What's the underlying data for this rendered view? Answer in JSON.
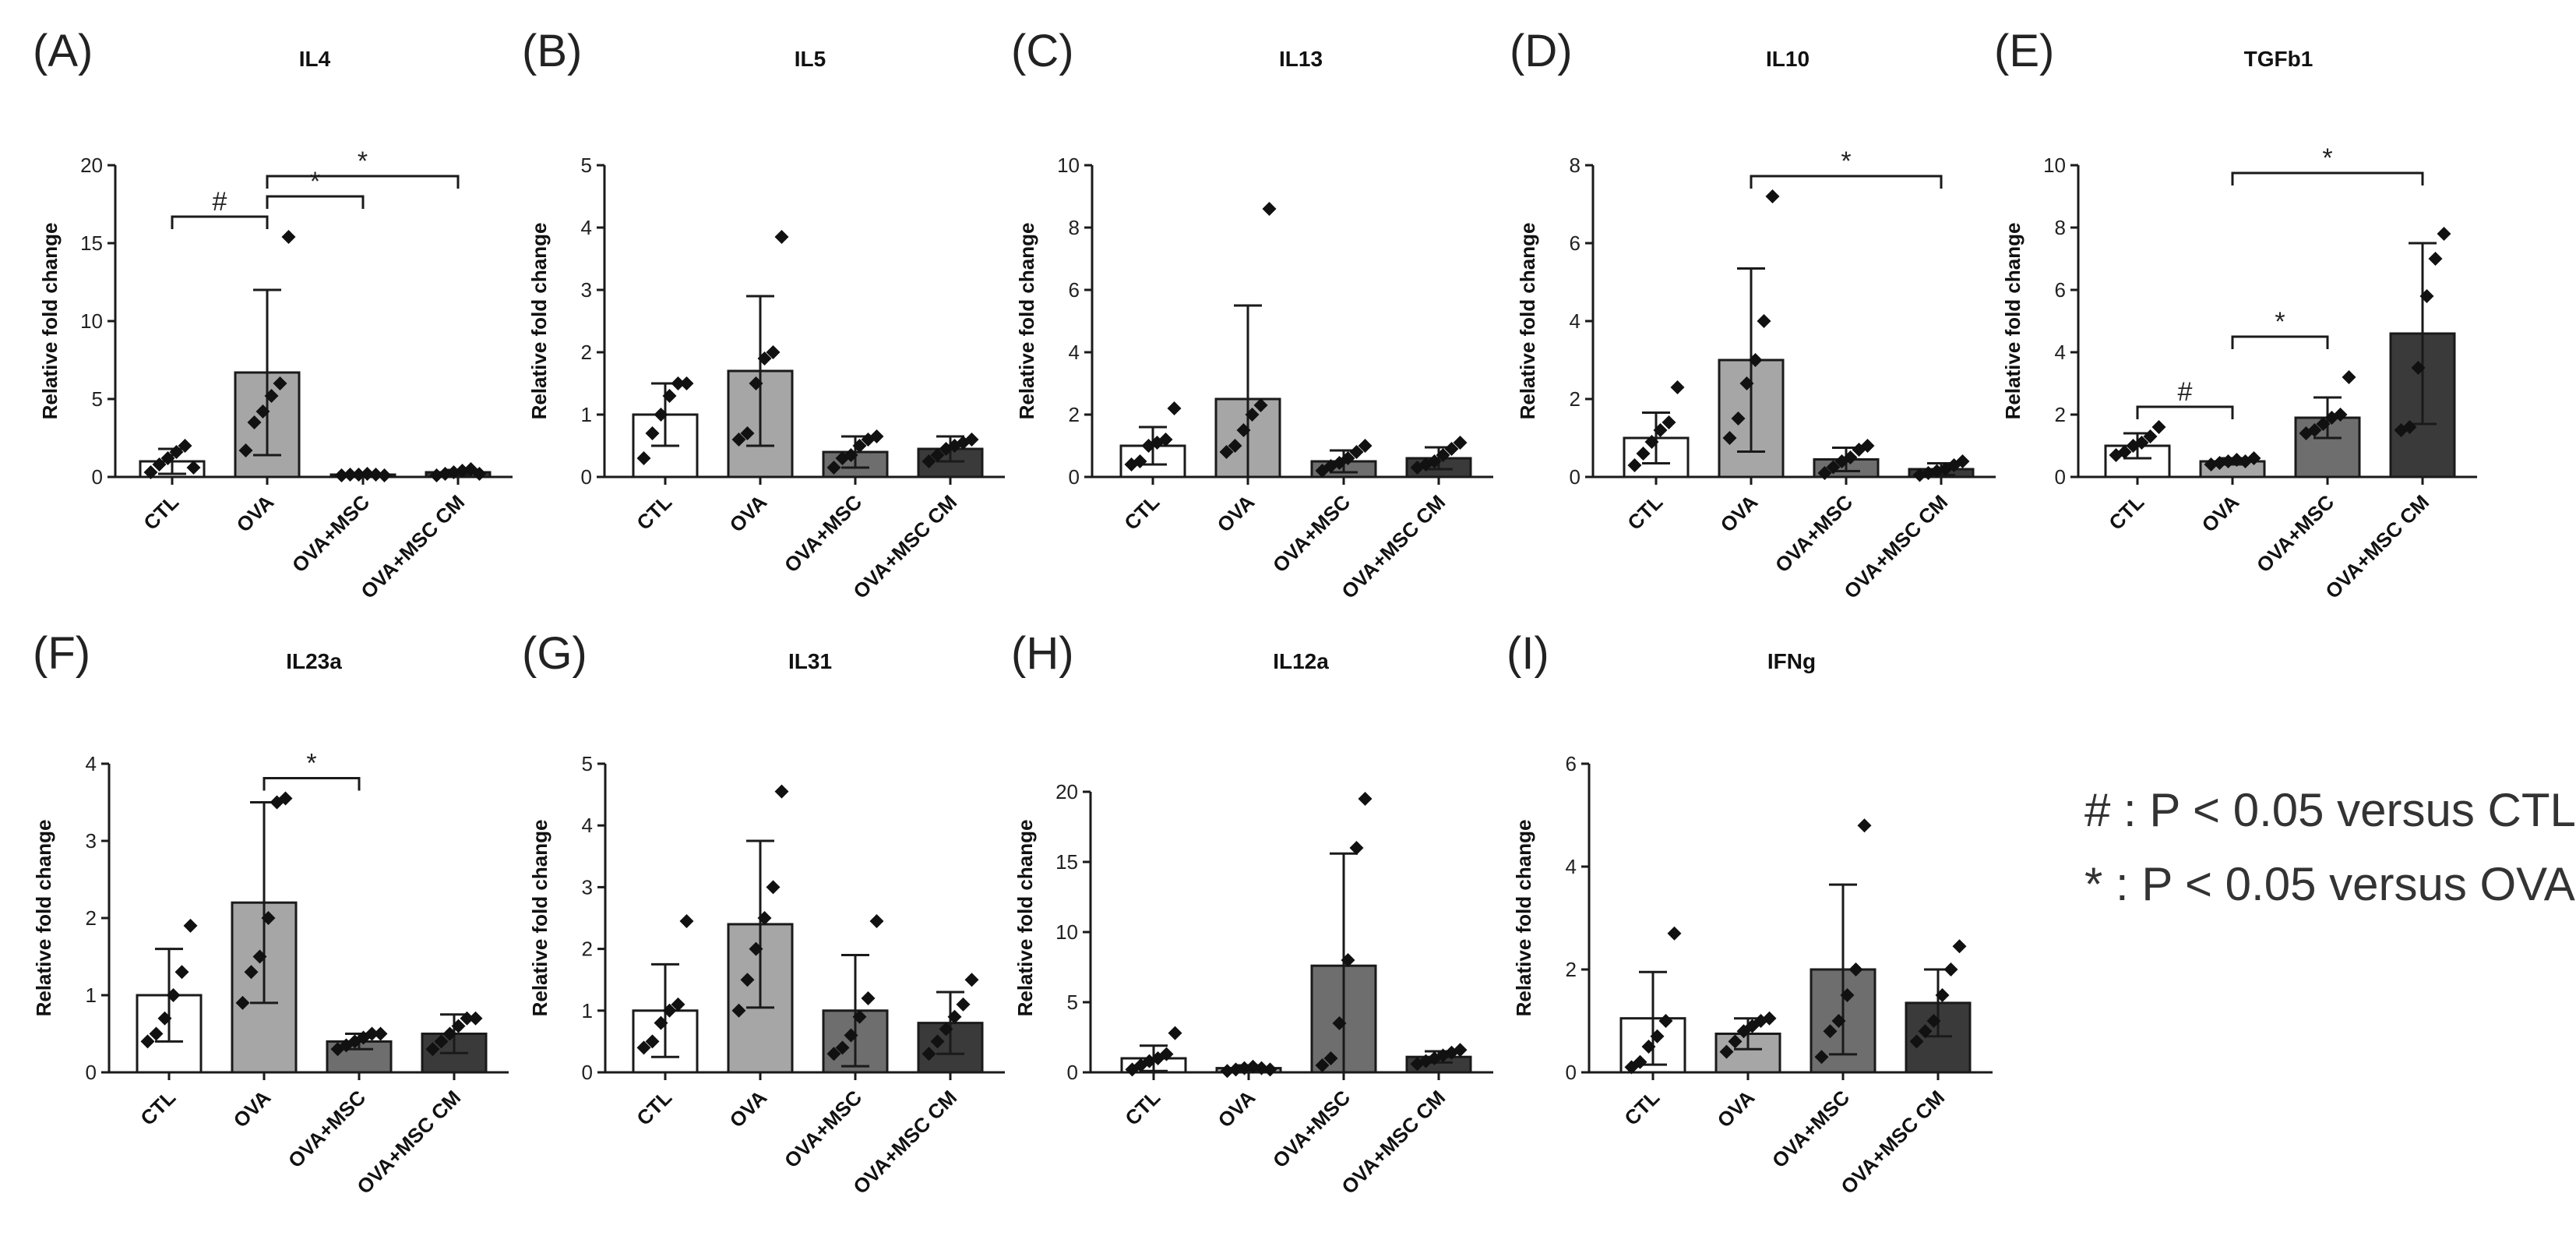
{
  "legend": {
    "hash_note": "# : P < 0.05 versus CTL",
    "star_note": "* : P < 0.05 versus OVA"
  },
  "colors": {
    "CTL": "#ffffff",
    "OVA": "#a6a6a6",
    "OVA+MSC": "#6e6e6e",
    "OVA+MSC CM": "#3a3a3a",
    "stroke": "#1a1a1a"
  },
  "chart_data": [
    {
      "type": "bar",
      "panel": "(A)",
      "title": "IL4",
      "ylabel": "Relative fold change",
      "categories": [
        "CTL",
        "OVA",
        "OVA+MSC",
        "OVA+MSC CM"
      ],
      "yticks": [
        "0",
        "5",
        "10",
        "15",
        "20"
      ],
      "ylim": [
        0,
        20
      ],
      "values": [
        1.0,
        6.7,
        0.15,
        0.3
      ],
      "err": [
        0.8,
        5.3,
        0.05,
        0.15
      ],
      "points": [
        [
          0.3,
          0.8,
          1.2,
          1.6,
          2.0,
          0.6
        ],
        [
          1.7,
          3.5,
          4.2,
          5.2,
          6.0,
          15.4
        ],
        [
          0.1,
          0.15,
          0.15,
          0.2,
          0.15,
          0.1
        ],
        [
          0.1,
          0.2,
          0.3,
          0.4,
          0.5,
          0.2
        ]
      ],
      "sig": [
        {
          "from": 0,
          "to": 1,
          "label": "#"
        },
        {
          "from": 1,
          "to": 2,
          "label": "*"
        },
        {
          "from": 1,
          "to": 3,
          "label": "*"
        }
      ]
    },
    {
      "type": "bar",
      "panel": "(B)",
      "title": "IL5",
      "ylabel": "Relative fold change",
      "categories": [
        "CTL",
        "OVA",
        "OVA+MSC",
        "OVA+MSC CM"
      ],
      "yticks": [
        "0",
        "1",
        "2",
        "3",
        "4",
        "5"
      ],
      "ylim": [
        0,
        5
      ],
      "values": [
        1.0,
        1.7,
        0.4,
        0.45
      ],
      "err": [
        0.5,
        1.2,
        0.25,
        0.2
      ],
      "points": [
        [
          0.3,
          0.7,
          1.0,
          1.3,
          1.5,
          1.5
        ],
        [
          0.6,
          0.7,
          1.5,
          1.9,
          2.0,
          3.85
        ],
        [
          0.15,
          0.3,
          0.35,
          0.5,
          0.6,
          0.65
        ],
        [
          0.25,
          0.35,
          0.45,
          0.5,
          0.55,
          0.6
        ]
      ],
      "sig": []
    },
    {
      "type": "bar",
      "panel": "(C)",
      "title": "IL13",
      "ylabel": "Relative fold change",
      "categories": [
        "CTL",
        "OVA",
        "OVA+MSC",
        "OVA+MSC CM"
      ],
      "yticks": [
        "0",
        "2",
        "4",
        "6",
        "8",
        "10"
      ],
      "ylim": [
        0,
        10
      ],
      "values": [
        1.0,
        2.5,
        0.5,
        0.6
      ],
      "err": [
        0.6,
        3.0,
        0.35,
        0.35
      ],
      "points": [
        [
          0.4,
          0.5,
          1.0,
          1.1,
          1.2,
          2.2
        ],
        [
          0.8,
          1.0,
          1.5,
          2.0,
          2.3,
          8.6
        ],
        [
          0.2,
          0.35,
          0.45,
          0.6,
          0.8,
          1.0
        ],
        [
          0.3,
          0.4,
          0.5,
          0.7,
          0.9,
          1.1
        ]
      ],
      "sig": []
    },
    {
      "type": "bar",
      "panel": "(D)",
      "title": "IL10",
      "ylabel": "Relative fold change",
      "categories": [
        "CTL",
        "OVA",
        "OVA+MSC",
        "OVA+MSC CM"
      ],
      "yticks": [
        "0",
        "2",
        "4",
        "6",
        "8"
      ],
      "ylim": [
        0,
        8
      ],
      "values": [
        1.0,
        3.0,
        0.45,
        0.2
      ],
      "err": [
        0.65,
        2.35,
        0.3,
        0.15
      ],
      "points": [
        [
          0.3,
          0.6,
          0.9,
          1.2,
          1.4,
          2.3
        ],
        [
          1.0,
          1.5,
          2.4,
          3.0,
          4.0,
          7.2
        ],
        [
          0.1,
          0.25,
          0.4,
          0.5,
          0.7,
          0.8
        ],
        [
          0.05,
          0.1,
          0.15,
          0.2,
          0.3,
          0.4
        ]
      ],
      "sig": [
        {
          "from": 1,
          "to": 3,
          "label": "*"
        }
      ]
    },
    {
      "type": "bar",
      "panel": "(E)",
      "title": "TGFb1",
      "ylabel": "Relative fold change",
      "categories": [
        "CTL",
        "OVA",
        "OVA+MSC",
        "OVA+MSC CM"
      ],
      "yticks": [
        "0",
        "2",
        "4",
        "6",
        "8",
        "10"
      ],
      "ylim": [
        0,
        10
      ],
      "values": [
        1.0,
        0.5,
        1.9,
        4.6
      ],
      "err": [
        0.4,
        0.1,
        0.65,
        2.9
      ],
      "points": [
        [
          0.7,
          0.8,
          1.0,
          1.1,
          1.3,
          1.6
        ],
        [
          0.4,
          0.45,
          0.5,
          0.55,
          0.5,
          0.6
        ],
        [
          1.4,
          1.5,
          1.7,
          1.9,
          2.0,
          3.2
        ],
        [
          1.5,
          1.6,
          3.5,
          5.8,
          7.0,
          7.8
        ]
      ],
      "sig": [
        {
          "from": 0,
          "to": 1,
          "label": "#"
        },
        {
          "from": 1,
          "to": 2,
          "label": "*"
        },
        {
          "from": 1,
          "to": 3,
          "label": "*"
        }
      ]
    },
    {
      "type": "bar",
      "panel": "(F)",
      "title": "IL23a",
      "ylabel": "Relative fold change",
      "categories": [
        "CTL",
        "OVA",
        "OVA+MSC",
        "OVA+MSC CM"
      ],
      "yticks": [
        "0",
        "1",
        "2",
        "3",
        "4"
      ],
      "ylim": [
        0,
        4
      ],
      "values": [
        1.0,
        2.2,
        0.4,
        0.5
      ],
      "err": [
        0.6,
        1.3,
        0.1,
        0.25
      ],
      "points": [
        [
          0.4,
          0.5,
          0.7,
          1.0,
          1.3,
          1.9
        ],
        [
          0.9,
          1.3,
          1.5,
          2.0,
          3.5,
          3.55
        ],
        [
          0.3,
          0.35,
          0.4,
          0.45,
          0.5,
          0.5
        ],
        [
          0.3,
          0.4,
          0.5,
          0.6,
          0.7,
          0.7
        ]
      ],
      "sig": [
        {
          "from": 1,
          "to": 2,
          "label": "*"
        }
      ]
    },
    {
      "type": "bar",
      "panel": "(G)",
      "title": "IL31",
      "ylabel": "Relative fold change",
      "categories": [
        "CTL",
        "OVA",
        "OVA+MSC",
        "OVA+MSC CM"
      ],
      "yticks": [
        "0",
        "1",
        "2",
        "3",
        "4",
        "5"
      ],
      "ylim": [
        0,
        5
      ],
      "values": [
        1.0,
        2.4,
        1.0,
        0.8
      ],
      "err": [
        0.75,
        1.35,
        0.9,
        0.5
      ],
      "points": [
        [
          0.4,
          0.5,
          0.8,
          1.0,
          1.1,
          2.45
        ],
        [
          1.0,
          1.5,
          2.0,
          2.5,
          3.0,
          4.55
        ],
        [
          0.3,
          0.4,
          0.6,
          0.9,
          1.2,
          2.45
        ],
        [
          0.3,
          0.5,
          0.7,
          0.9,
          1.1,
          1.5
        ]
      ],
      "sig": []
    },
    {
      "type": "bar",
      "panel": "(H)",
      "title": "IL12a",
      "ylabel": "Relative fold change",
      "categories": [
        "CTL",
        "OVA",
        "OVA+MSC",
        "OVA+MSC CM"
      ],
      "yticks": [
        "0",
        "5",
        "10",
        "15",
        "20"
      ],
      "ylim": [
        0,
        22
      ],
      "values": [
        1.0,
        0.3,
        7.6,
        1.1
      ],
      "err": [
        0.9,
        0.2,
        8.0,
        0.4
      ],
      "points": [
        [
          0.2,
          0.5,
          0.8,
          1.0,
          1.3,
          2.8
        ],
        [
          0.1,
          0.2,
          0.3,
          0.4,
          0.3,
          0.2
        ],
        [
          0.5,
          1.0,
          3.5,
          8.0,
          16.0,
          19.5
        ],
        [
          0.6,
          0.8,
          1.0,
          1.2,
          1.4,
          1.6
        ]
      ],
      "sig": []
    },
    {
      "type": "bar",
      "panel": "(I)",
      "title": "IFNg",
      "ylabel": "Relative fold change",
      "categories": [
        "CTL",
        "OVA",
        "OVA+MSC",
        "OVA+MSC CM"
      ],
      "yticks": [
        "0",
        "2",
        "4",
        "6"
      ],
      "ylim": [
        0,
        6
      ],
      "values": [
        1.05,
        0.75,
        2.0,
        1.35
      ],
      "err": [
        0.9,
        0.3,
        1.65,
        0.65
      ],
      "points": [
        [
          0.1,
          0.2,
          0.5,
          0.7,
          1.0,
          2.7
        ],
        [
          0.4,
          0.6,
          0.8,
          0.9,
          1.0,
          1.05
        ],
        [
          0.3,
          0.8,
          1.0,
          1.5,
          2.0,
          4.8
        ],
        [
          0.6,
          0.8,
          1.0,
          1.5,
          2.0,
          2.45
        ]
      ],
      "sig": []
    }
  ]
}
